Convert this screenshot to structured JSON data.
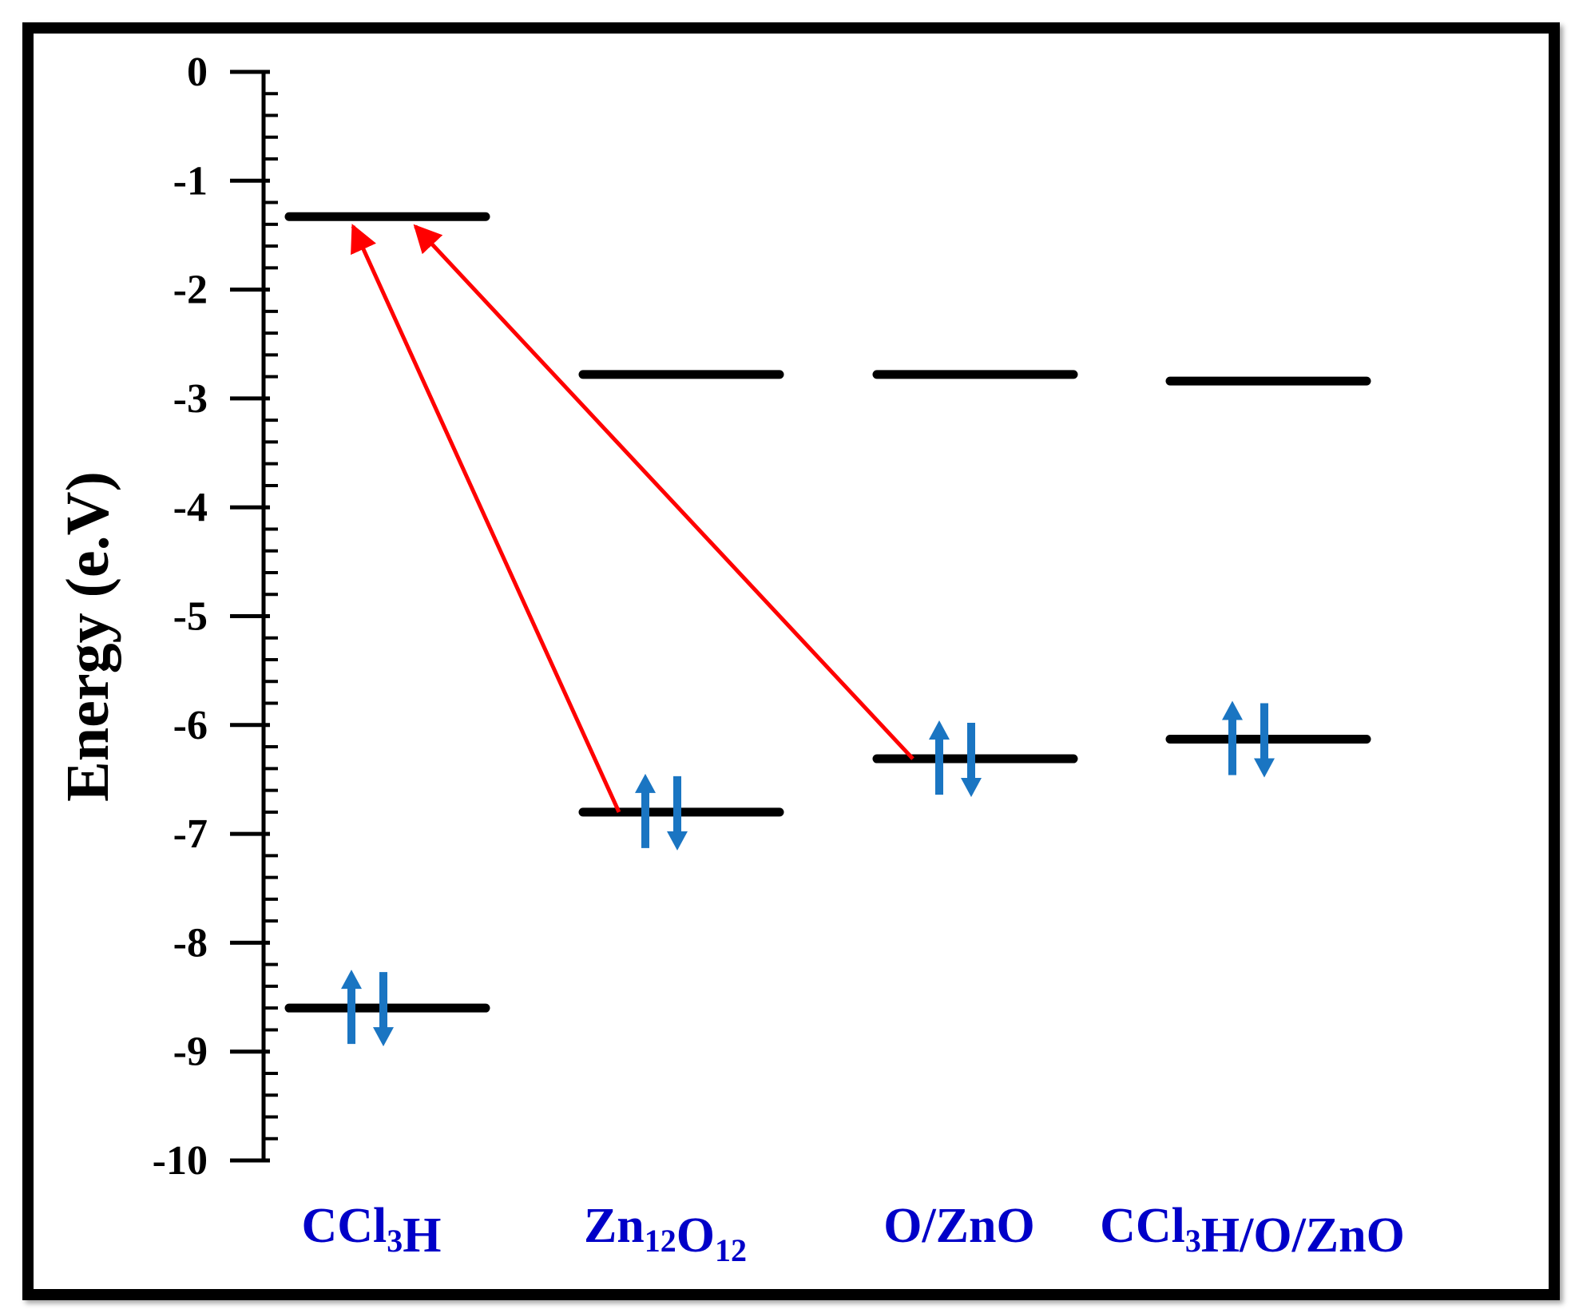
{
  "chart_data": {
    "type": "energy-level diagram",
    "ylabel": "Energy (e.V)",
    "ylim": [
      -10,
      0
    ],
    "yticks": [
      "0",
      "-1",
      "-2",
      "-3",
      "-4",
      "-5",
      "-6",
      "-7",
      "-8",
      "-9",
      "-10"
    ],
    "categories": [
      {
        "name": "CCl3H",
        "parts": [
          [
            "CCl",
            ""
          ],
          [
            "3",
            "sub"
          ],
          [
            "H",
            ""
          ]
        ],
        "lumo": -1.33,
        "homo": -8.6
      },
      {
        "name": "Zn12O12",
        "parts": [
          [
            "Zn",
            ""
          ],
          [
            "12",
            "sub"
          ],
          [
            "O",
            ""
          ],
          [
            "12",
            "sub"
          ]
        ],
        "lumo": -2.78,
        "homo": -6.8
      },
      {
        "name": "O/ZnO",
        "parts": [
          [
            "O/ZnO",
            ""
          ]
        ],
        "lumo": -2.78,
        "homo": -6.31
      },
      {
        "name": "CCl3H/O/ZnO",
        "parts": [
          [
            "CCl",
            ""
          ],
          [
            "3",
            "sub"
          ],
          [
            "H/O/ZnO",
            ""
          ]
        ],
        "lumo": -2.84,
        "homo": -6.13
      }
    ],
    "transitions": [
      {
        "from": "Zn12O12",
        "from_level": "homo",
        "to": "CCl3H",
        "to_level": "lumo"
      },
      {
        "from": "O/ZnO",
        "from_level": "homo",
        "to": "CCl3H",
        "to_level": "lumo"
      }
    ],
    "colors": {
      "level": "#000000",
      "transition": "#ff0000",
      "spin": "#1a75c2",
      "category": "#0000c8",
      "axis": "#000000"
    }
  }
}
